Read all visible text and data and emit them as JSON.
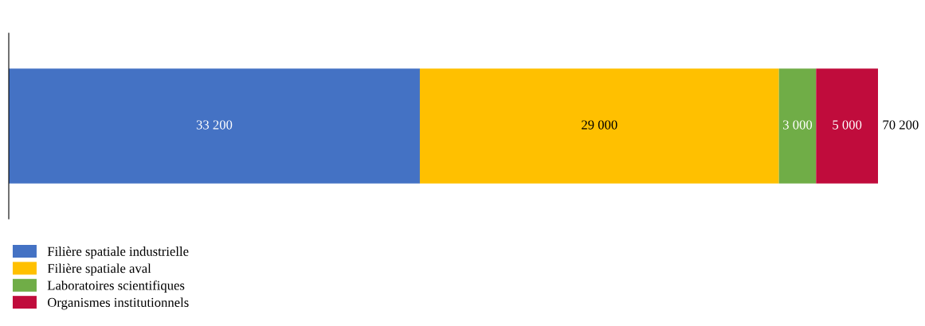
{
  "chart_data": {
    "type": "bar",
    "orientation": "horizontal",
    "stacked": true,
    "categories": [
      null
    ],
    "legend": "bottom left",
    "series": [
      {
        "name": "Filière spatiale industrielle",
        "color": "#4472c4",
        "values": [
          33200
        ],
        "value_labels": [
          "33 200"
        ]
      },
      {
        "name": "Filière spatiale aval",
        "color": "#ffc000",
        "values": [
          29000
        ],
        "value_labels": [
          "29 000"
        ]
      },
      {
        "name": "Laboratoires scientifiques",
        "color": "#70ad47",
        "values": [
          3000
        ],
        "value_labels": [
          "3 000"
        ]
      },
      {
        "name": "Organismes institutionnels",
        "color": "#c00c3c",
        "values": [
          5000
        ],
        "value_labels": [
          "5 000"
        ]
      }
    ],
    "totals": [
      "70 200"
    ]
  }
}
